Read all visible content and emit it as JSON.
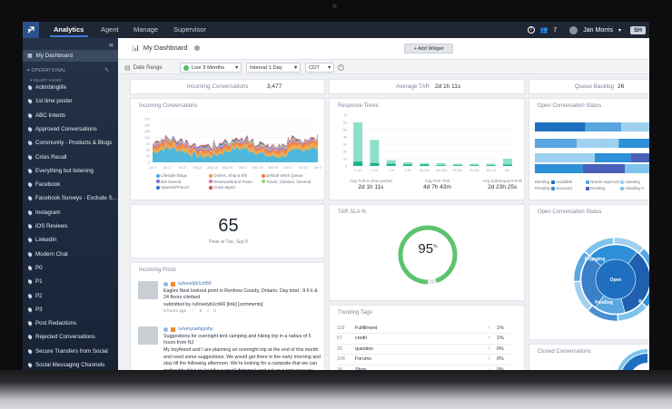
{
  "topbar": {
    "nav": [
      "Analytics",
      "Agent",
      "Manage",
      "Supervisor"
    ],
    "team_count": "7",
    "user_name": "Jan Morris",
    "sh_label": "SH"
  },
  "sidebar": {
    "my_dashboard": "My Dashboard",
    "section_operational": "OPERATIONAL",
    "section_smart_views": "SMART VIEWS",
    "items": [
      "#climbinglife",
      "1st time poster",
      "ABC Intents",
      "Approved Conversations",
      "Community - Products & Blogs",
      "Crisis Recall",
      "Everything but listening",
      "Facebook",
      "Facebook Surveys - Exclude S...",
      "Instagram",
      "iOS Reviews",
      "LinkedIn",
      "Modern Chat",
      "P0",
      "P1",
      "P2",
      "P3",
      "Post Redactions",
      "Rejected Conversations",
      "Secure Transfers from Social",
      "Social Messaging Channels"
    ]
  },
  "header": {
    "title": "My Dashboard",
    "add_widget": "+ Add Widget"
  },
  "filters": {
    "date_range_label": "Date Range",
    "live_range": "Live  3 Months",
    "interval": "Interval  1 Day",
    "timezone": "CDT"
  },
  "stats": {
    "incoming_label": "Incoming Conversations",
    "incoming_value": "3,477",
    "tar_label": "Average TAR",
    "tar_value": "2d 1h 11s",
    "backlog_label": "Queue Backlog",
    "backlog_value": "26"
  },
  "incoming_chart": {
    "title": "Incoming Conversations",
    "y_ticks": [
      "175",
      "150",
      "125",
      "100",
      "75",
      "50",
      "25",
      "0"
    ],
    "x_ticks": [
      "Jul 7",
      "Jul 17",
      "Jul 27",
      "Aug 6",
      "Aug 16",
      "Aug 26",
      "Sep 5",
      "Sep 15",
      "Sep 25",
      "Oct 5",
      "Oct 15",
      "Oct 2"
    ],
    "legend": [
      {
        "name": "Lifestyle Blogs",
        "color": "#3ab0d8"
      },
      {
        "name": "Orders, Ship & Bill",
        "color": "#e8a23a"
      },
      {
        "name": "Default Work Queue",
        "color": "#f07a2e"
      },
      {
        "name": "Bot Owned",
        "color": "#7a6bd0"
      },
      {
        "name": "Reviews/Brand Posts",
        "color": "#e86aa8"
      },
      {
        "name": "Travel, Classes, General",
        "color": "#9fd06a"
      },
      {
        "name": "Spanish/French",
        "color": "#2f6fc8"
      },
      {
        "name": "Crisis Mgmt",
        "color": "#d04a4a"
      }
    ]
  },
  "response_times": {
    "title": "Response Times",
    "y_ticks": [
      "70",
      "60",
      "50",
      "40",
      "30",
      "20",
      "10",
      "0"
    ],
    "categories": [
      "0-1m",
      "1-1h",
      "1-3h",
      "3-5h",
      "5h-10h",
      "10h-20h",
      "20-30h",
      "30-40h",
      "40h-1d",
      "8d+"
    ],
    "tar_values": [
      60,
      36,
      8,
      5,
      4,
      4,
      3,
      3,
      3,
      10
    ],
    "first_values": [
      6,
      4,
      3,
      2,
      2,
      1,
      1,
      1,
      1,
      2
    ],
    "stats": [
      {
        "label": "Avg TAR in time period",
        "value": "2d 1h 11s"
      },
      {
        "label": "Avg First TAR",
        "value": "4d 7h 43m"
      },
      {
        "label": "Avg Subsequent TAR",
        "value": "2d 23h 25s"
      }
    ]
  },
  "open_status": {
    "title": "Open Conversation Status",
    "legend": [
      {
        "name": "Available",
        "color": "#1f6fc0"
      },
      {
        "name": "Needs Approval",
        "color": "#5aa6e0"
      },
      {
        "name": "Awaiting",
        "color": "#9fd0f0"
      },
      {
        "name": "Snoozed",
        "color": "#2c8fd8"
      },
      {
        "name": "Pending",
        "color": "#4a5fb8"
      },
      {
        "name": "Awaiting C",
        "color": "#7ec4ec"
      }
    ],
    "row_labels": [
      "Backlog",
      "Pending"
    ]
  },
  "peak": {
    "value": "65",
    "label": "Peak at Tue, Sep 8"
  },
  "tar_sla": {
    "title": "TAR SLA %",
    "value": 95,
    "display": "95",
    "unit": "%"
  },
  "open_status_sunburst": {
    "title": "Open Conversation Status",
    "labels": [
      "Engaging",
      "Open",
      "Pending",
      "R"
    ]
  },
  "incoming_posts": {
    "title": "Incoming Posts",
    "posts": [
      {
        "handle": "/u/lovelyb1ch66",
        "text": "Eagles Nest lookout point in Renfrew County, Ontario. Day total : 9.6 k & 24 floors climbed",
        "meta": "submitted by /u/lovelyb1ch66 [link] [comments]",
        "time": "9 hours ago",
        "likes": "0",
        "comments": "0"
      },
      {
        "handle": "/u/veryuahypshy",
        "text": "Suggestions for overnight tent camping and hiking trip in a radius of 5 hours from NJ",
        "meta": "My boyfriend and I are planning an overnight trip at the end of this month and need some suggestions. We would get there in the early morning and stay till the following afternoon. We're looking for a campsite that we can preferably drive to (or hike a small distance) and set up a tent once we arrive. We mainly want to be able to do"
      }
    ]
  },
  "trending_tags": {
    "title": "Trending Tags",
    "rows": [
      {
        "count": "119",
        "tag": "Fulfillment",
        "change": "1%",
        "dir": "up"
      },
      {
        "count": "57",
        "tag": "credit",
        "change": "1%",
        "dir": "up"
      },
      {
        "count": "30",
        "tag": "question",
        "change": "0%",
        "dir": "up"
      },
      {
        "count": "104",
        "tag": "Forums",
        "change": "0%",
        "dir": "up"
      },
      {
        "count": "34",
        "tag": "Shop",
        "change": "0%",
        "dir": "down"
      }
    ]
  },
  "closed_status": {
    "title": "Closed Conversations"
  }
}
